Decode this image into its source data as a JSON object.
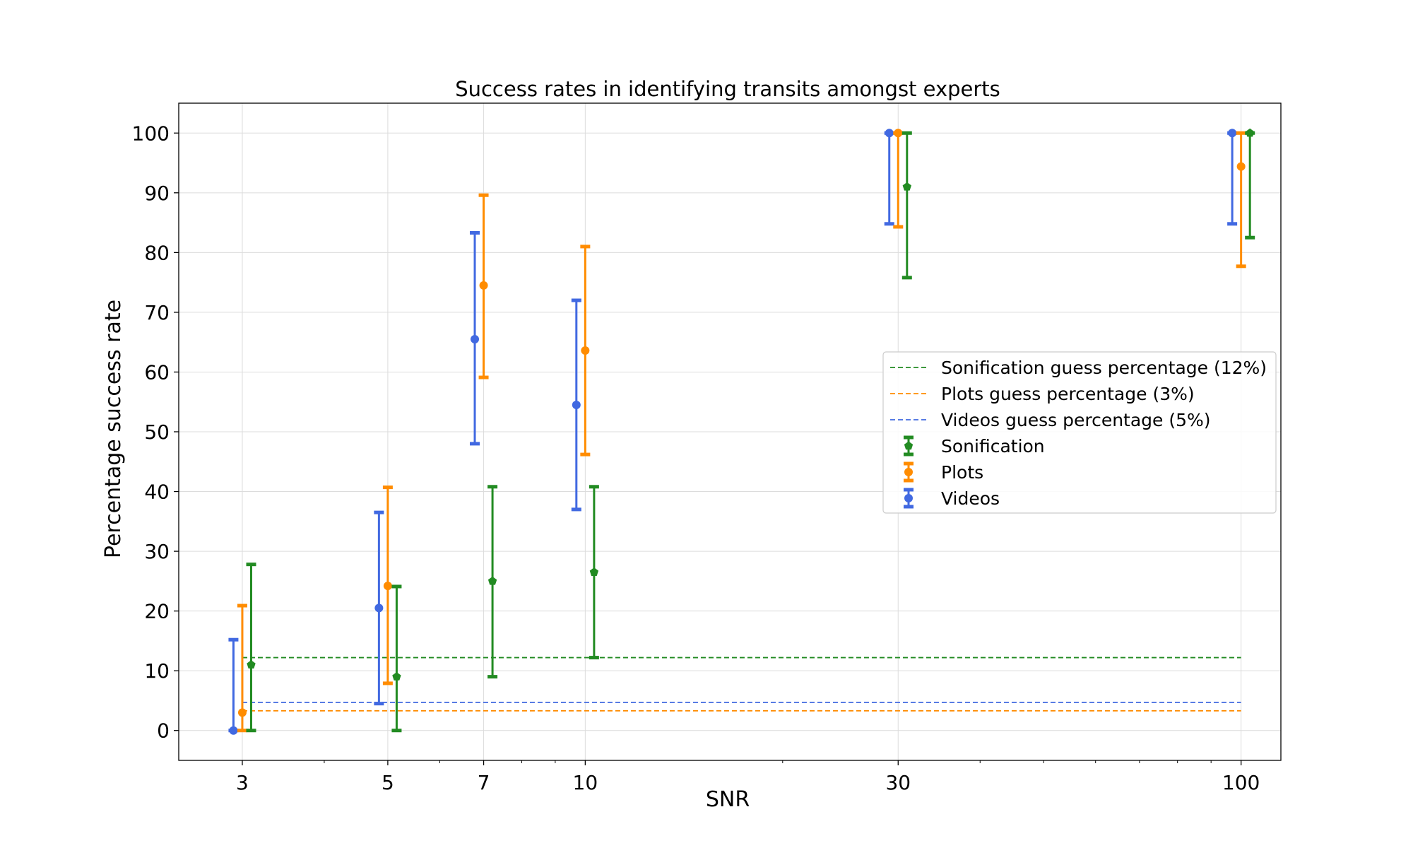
{
  "chart_data": {
    "type": "errorbar",
    "title": "Success rates in identifying transits amongst experts",
    "xlabel": "SNR",
    "ylabel": "Percentage success rate",
    "x_scale": "log",
    "xlim": [
      2.4,
      115
    ],
    "ylim": [
      -5,
      105
    ],
    "x_ticks": [
      3,
      5,
      7,
      10,
      30,
      100
    ],
    "x_tick_labels": [
      "3",
      "5",
      "7",
      "10",
      "30",
      "100"
    ],
    "y_ticks": [
      0,
      10,
      20,
      30,
      40,
      50,
      60,
      70,
      80,
      90,
      100
    ],
    "y_tick_labels": [
      "0",
      "10",
      "20",
      "30",
      "40",
      "50",
      "60",
      "70",
      "80",
      "90",
      "100"
    ],
    "grid": true,
    "legend_position": "center-right",
    "series": [
      {
        "name": "Videos",
        "color": "#4169E1",
        "marker": "circle",
        "x": [
          3,
          5,
          7,
          10,
          30,
          100
        ],
        "y": [
          0,
          20.5,
          65.5,
          54.5,
          100,
          100
        ],
        "lower": [
          0,
          4.5,
          48,
          37,
          84.8,
          84.8
        ],
        "upper": [
          15.2,
          36.5,
          83.3,
          72,
          100,
          100
        ]
      },
      {
        "name": "Plots",
        "color": "#FF8C00",
        "marker": "circle",
        "x": [
          3,
          5,
          7,
          10,
          30,
          100
        ],
        "y": [
          3,
          24.2,
          74.5,
          63.6,
          100,
          94.4
        ],
        "lower": [
          0,
          7.9,
          59.1,
          46.2,
          84.3,
          77.7
        ],
        "upper": [
          20.9,
          40.7,
          89.6,
          81,
          100,
          100
        ]
      },
      {
        "name": "Sonification",
        "color": "#228B22",
        "marker": "pentagon",
        "x": [
          3,
          5,
          7,
          10,
          30,
          100
        ],
        "y": [
          11,
          9,
          25,
          26.5,
          91,
          100
        ],
        "lower": [
          0,
          0,
          9,
          12.2,
          75.8,
          82.5
        ],
        "upper": [
          27.8,
          24.1,
          40.8,
          40.8,
          100,
          100
        ]
      }
    ],
    "reference_lines": [
      {
        "name": "Sonification guess percentage (12%)",
        "y": 12.2,
        "color": "#228B22"
      },
      {
        "name": "Plots guess percentage (3%)",
        "y": 3.3,
        "color": "#FF8C00"
      },
      {
        "name": "Videos guess percentage (5%)",
        "y": 4.7,
        "color": "#4169E1"
      }
    ]
  }
}
